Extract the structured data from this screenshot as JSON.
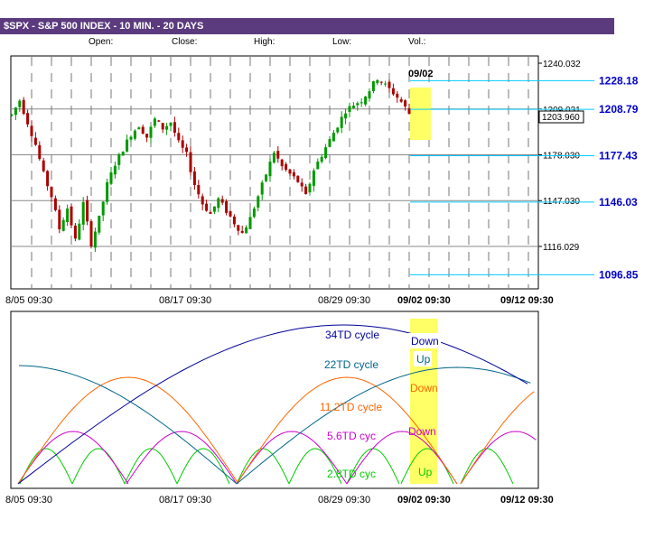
{
  "header": {
    "title": "$SPX - S&P 500 INDEX - 10 MIN. - 20 DAYS",
    "open_label": "Open:",
    "close_label": "Close:",
    "high_label": "High:",
    "low_label": "Low:",
    "vol_label": "Vol.:"
  },
  "chart_data": [
    {
      "type": "candlestick",
      "title": "$SPX - S&P 500 INDEX - 10 MIN. - 20 DAYS",
      "x_tick_labels": [
        "8/05 09:30",
        "08/17 09:30",
        "08/29 09:30",
        "09/02 09:30",
        "09/12 09:30"
      ],
      "y_tick_labels": [
        "1240.032",
        "1209.031",
        "1178.030",
        "1147.030",
        "1116.029"
      ],
      "ylim": [
        1085,
        1247
      ],
      "current_price": "1203.960",
      "highlight_label": "09/02",
      "grid": true,
      "price_path": [
        [
          0,
          1205
        ],
        [
          2,
          1215
        ],
        [
          4,
          1200
        ],
        [
          6,
          1185
        ],
        [
          8,
          1165
        ],
        [
          10,
          1150
        ],
        [
          12,
          1128
        ],
        [
          14,
          1142
        ],
        [
          16,
          1120
        ],
        [
          18,
          1145
        ],
        [
          20,
          1118
        ],
        [
          22,
          1135
        ],
        [
          24,
          1158
        ],
        [
          26,
          1172
        ],
        [
          28,
          1182
        ],
        [
          30,
          1192
        ],
        [
          32,
          1198
        ],
        [
          34,
          1190
        ],
        [
          36,
          1202
        ],
        [
          38,
          1196
        ],
        [
          40,
          1200
        ],
        [
          42,
          1186
        ],
        [
          44,
          1178
        ],
        [
          46,
          1158
        ],
        [
          48,
          1145
        ],
        [
          50,
          1138
        ],
        [
          52,
          1148
        ],
        [
          54,
          1140
        ],
        [
          56,
          1132
        ],
        [
          58,
          1125
        ],
        [
          60,
          1135
        ],
        [
          62,
          1150
        ],
        [
          64,
          1165
        ],
        [
          66,
          1180
        ],
        [
          68,
          1170
        ],
        [
          70,
          1165
        ],
        [
          72,
          1160
        ],
        [
          74,
          1150
        ],
        [
          76,
          1168
        ],
        [
          78,
          1178
        ],
        [
          80,
          1188
        ],
        [
          82,
          1198
        ],
        [
          84,
          1208
        ],
        [
          86,
          1212
        ],
        [
          88,
          1215
        ],
        [
          90,
          1222
        ],
        [
          92,
          1230
        ],
        [
          94,
          1225
        ],
        [
          96,
          1220
        ],
        [
          98,
          1214
        ],
        [
          100,
          1206
        ]
      ],
      "levels": [
        {
          "value": "1228.18",
          "price": 1228.18
        },
        {
          "value": "1208.79",
          "price": 1208.79
        },
        {
          "value": "1177.43",
          "price": 1177.43
        },
        {
          "value": "1146.03",
          "price": 1146.03
        },
        {
          "value": "1096.85",
          "price": 1096.85
        }
      ],
      "colors": {
        "up": "#009900",
        "down": "#aa0000",
        "levels": "#00ccff",
        "highlight": "#ffff66"
      }
    },
    {
      "type": "line",
      "x_tick_labels": [
        "8/05 09:30",
        "08/17 09:30",
        "08/29 09:30",
        "09/02 09:30",
        "09/12 09:30"
      ],
      "series": [
        {
          "name": "34TD cycle",
          "color": "#000099"
        },
        {
          "name": "22TD cycle",
          "color": "#006688"
        },
        {
          "name": "11.2TD cycle",
          "color": "#ff6600"
        },
        {
          "name": "5.6TD cyc",
          "color": "#cc00cc"
        },
        {
          "name": "2.8TD cyc",
          "color": "#00cc00"
        }
      ],
      "phase_labels": {
        "34td": "Down",
        "22td": "Up",
        "11_2td": "Down",
        "5_6td": "Down",
        "2_8td": "Up"
      }
    }
  ]
}
